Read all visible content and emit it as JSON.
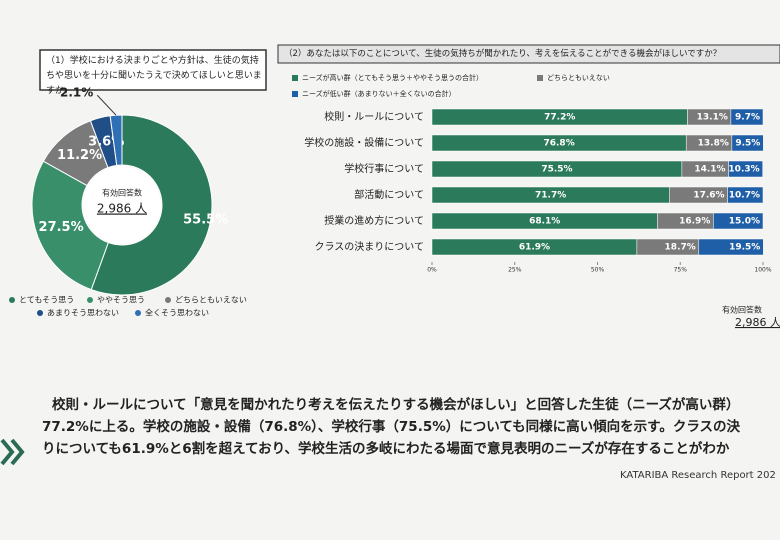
{
  "chart_data": [
    {
      "type": "pie",
      "title": "（1）学校における決まりごとや方針は、生徒の気持ちや思いを十分に聞いたうえで決めてほしいと思いますか。",
      "center_label": "有効回答数",
      "center_value": "2,986 人",
      "categories": [
        "とてもそう思う",
        "ややそう思う",
        "どちらともいえない",
        "あまりそう思わない",
        "全くそう思わない"
      ],
      "values": [
        55.5,
        27.5,
        11.2,
        3.6,
        2.1
      ],
      "value_labels": [
        "55.5%",
        "27.5%",
        "11.2%",
        "3.6%",
        "2.1%"
      ],
      "colors": [
        "#2b7a5b",
        "#3a8f6b",
        "#7a7a7a",
        "#1f4f86",
        "#2f6fb5"
      ]
    },
    {
      "type": "stacked-barh",
      "title": "（2）あなたは以下のことについて、生徒の気持ちが聞かれたり、考えを伝えることができる機会がほしいですか？",
      "categories": [
        "校則・ルールについて",
        "学校の施設・設備について",
        "学校行事について",
        "部活動について",
        "授業の進め方について",
        "クラスの決まりについて"
      ],
      "series": [
        {
          "name": "ニーズが高い群（とてもそう思う＋ややそう思うの合計）",
          "color": "#2b7a5b",
          "values": [
            77.2,
            76.8,
            75.5,
            71.7,
            68.1,
            61.9
          ],
          "value_labels": [
            "77.2%",
            "76.8%",
            "75.5%",
            "71.7%",
            "68.1%",
            "61.9%"
          ]
        },
        {
          "name": "どちらともいえない",
          "color": "#7a7a7a",
          "values": [
            13.1,
            13.8,
            14.1,
            17.6,
            16.9,
            18.7
          ],
          "value_labels": [
            "13.1%",
            "13.8%",
            "14.1%",
            "17.6%",
            "16.9%",
            "18.7%"
          ]
        },
        {
          "name": "ニーズが低い群（あまりない＋全くないの合計）",
          "color": "#1f5fa8",
          "values": [
            9.7,
            9.5,
            10.3,
            10.7,
            15.0,
            19.5
          ],
          "value_labels": [
            "9.7%",
            "9.5%",
            "10.3%",
            "10.7%",
            "15.0%",
            "19.5%"
          ]
        }
      ],
      "xlim": [
        0,
        100
      ],
      "xticks": [
        {
          "value": 0,
          "label": "0%"
        },
        {
          "value": 25,
          "label": "25%"
        },
        {
          "value": 50,
          "label": "50%"
        },
        {
          "value": 75,
          "label": "75%"
        },
        {
          "value": 100,
          "label": "100%"
        }
      ],
      "note_label": "有効回答数",
      "note_value": "2,986 人"
    }
  ],
  "summary": [
    "校則・ルールについて「意見を聞かれたり考えを伝えたりする機会がほしい」と回答した生徒（ニーズが高い群）",
    "77.2%に上る。学校の施設・設備（76.8%）、学校行事（75.5%）についても同様に高い傾向を示す。クラスの決",
    "りについても61.9%と6割を超えており、学校生活の多岐にわたる場面で意見表明のニーズが存在することがわか"
  ],
  "footer": "KATARIBA Research Report 202"
}
